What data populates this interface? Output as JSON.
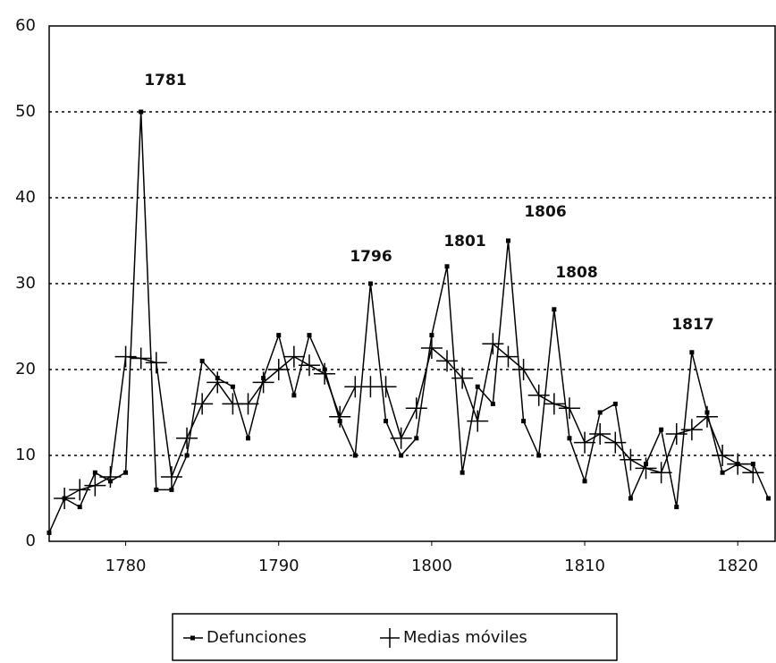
{
  "chart_data": {
    "type": "line",
    "x": [
      1775,
      1776,
      1777,
      1778,
      1779,
      1780,
      1781,
      1782,
      1783,
      1784,
      1785,
      1786,
      1787,
      1788,
      1789,
      1790,
      1791,
      1792,
      1793,
      1794,
      1795,
      1796,
      1797,
      1798,
      1799,
      1800,
      1801,
      1802,
      1803,
      1804,
      1805,
      1806,
      1807,
      1808,
      1809,
      1810,
      1811,
      1812,
      1813,
      1814,
      1815,
      1816,
      1817,
      1818,
      1819,
      1820,
      1821,
      1822
    ],
    "series": [
      {
        "name": "Defunciones",
        "color": "#000000",
        "marker": "square",
        "values": [
          1,
          5,
          4,
          8,
          7,
          8,
          50,
          6,
          6,
          10,
          21,
          19,
          18,
          12,
          19,
          24,
          17,
          24,
          20,
          14,
          10,
          30,
          14,
          10,
          12,
          24,
          32,
          8,
          18,
          16,
          35,
          14,
          10,
          27,
          12,
          7,
          15,
          16,
          5,
          9,
          13,
          4,
          22,
          15,
          8,
          9,
          9,
          5
        ]
      },
      {
        "name": "Medias móviles",
        "color": "#000000",
        "marker": "cross",
        "values": [
          null,
          5,
          6,
          6.5,
          7.5,
          21.5,
          21.3,
          20.8,
          7.5,
          12,
          16,
          18.5,
          16,
          16,
          18.5,
          20,
          21.5,
          20.5,
          19.5,
          14.5,
          18,
          18,
          18,
          12,
          15.5,
          22.5,
          21,
          19,
          14,
          23,
          21.5,
          20,
          17,
          16,
          15.5,
          11.5,
          12.5,
          11.5,
          9.5,
          8.5,
          8,
          12.5,
          13,
          14.5,
          10,
          9,
          8,
          null
        ]
      }
    ],
    "annotations": [
      "1781",
      "1796",
      "1801",
      "1806",
      "1808",
      "1817"
    ],
    "xlim": [
      1775,
      1822.5
    ],
    "xticks": [
      1780,
      1790,
      1800,
      1810,
      1820
    ],
    "ylim": [
      0,
      60
    ],
    "yticks": [
      0,
      10,
      20,
      30,
      40,
      50,
      60
    ],
    "grid": true
  }
}
